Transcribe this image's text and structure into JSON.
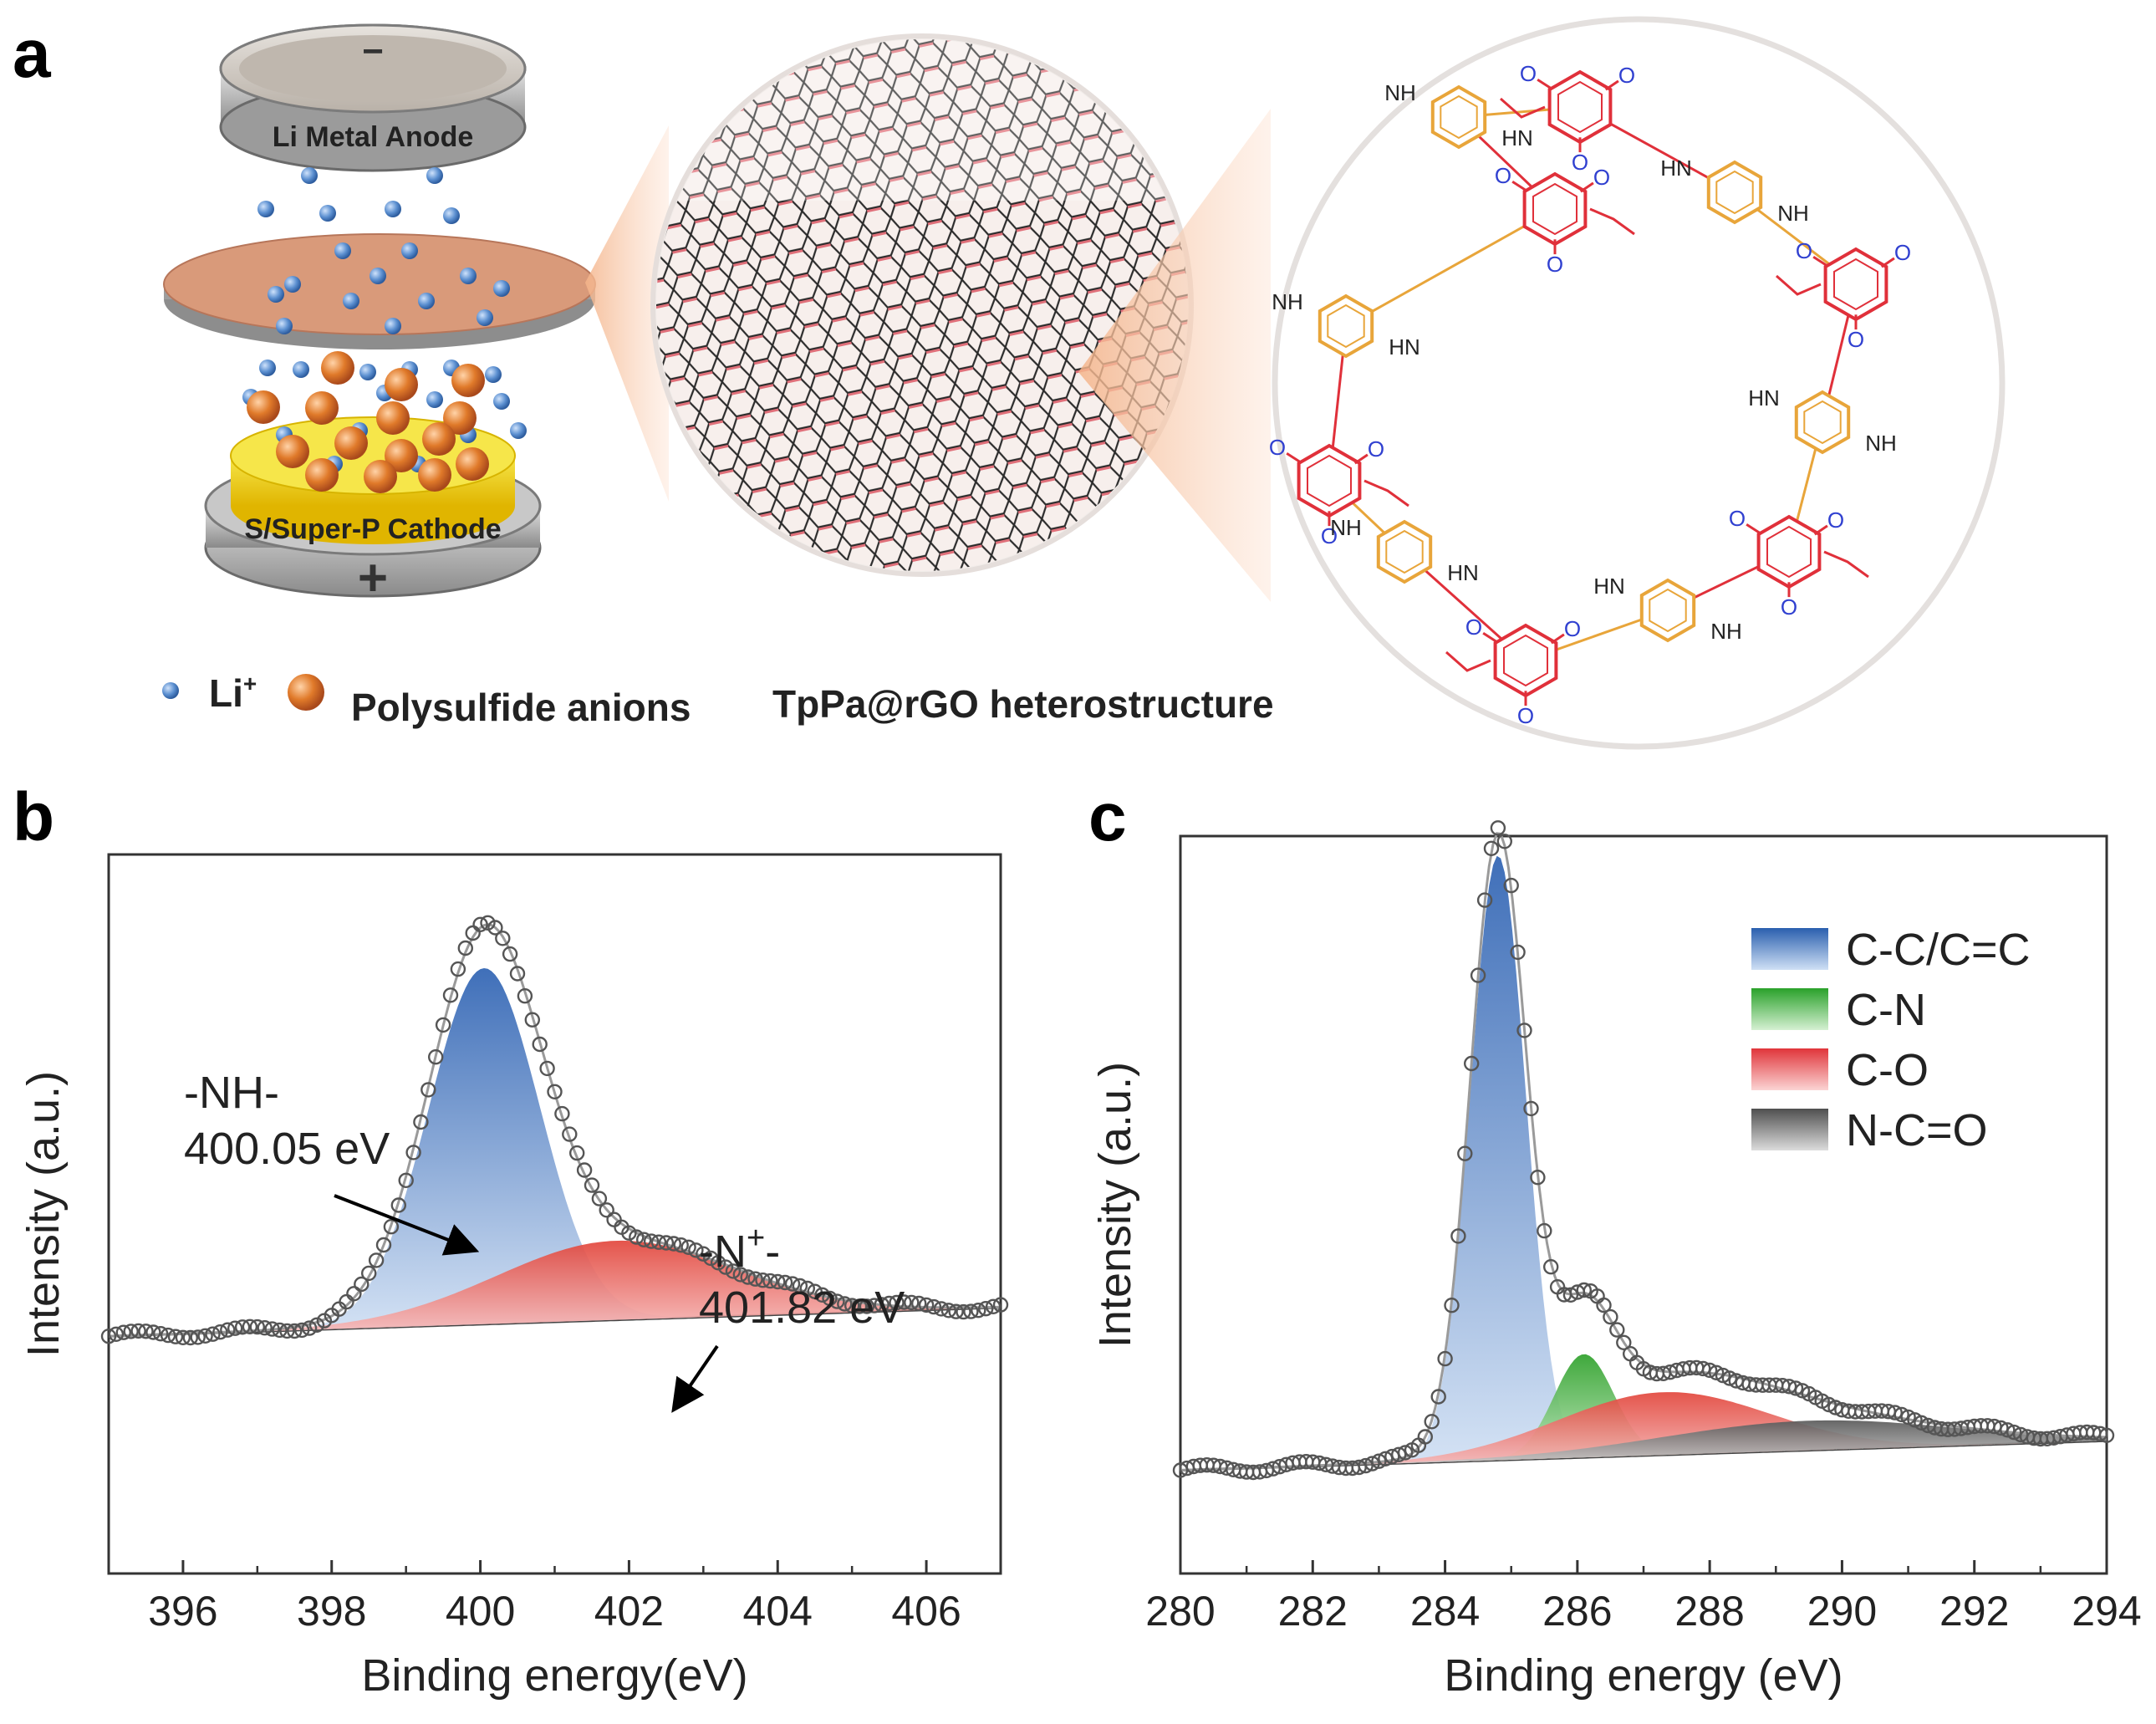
{
  "panels": {
    "a": "a",
    "b": "b",
    "c": "c"
  },
  "schematic": {
    "anode_label": "Li Metal Anode",
    "cathode_label": "S/Super-P Cathode",
    "minus_sign": "−",
    "plus_sign": "+",
    "legend": {
      "li": "Li",
      "li_sup": "+",
      "polysulfide": "Polysulfide anions",
      "heterostructure": "TpPa@rGO heterostructure"
    },
    "colors": {
      "li_ion": "#5b8fd0",
      "polysulfide": "#e07a2a",
      "separator": "#d99a7a",
      "cathode": "#f2dc1d",
      "keto": "#e0303a",
      "linker": "#e8a53a",
      "oxygen": "#3040d0"
    },
    "chem": {
      "O": "O",
      "NH": "NH",
      "HN": "HN",
      "H": "H",
      "N": "N"
    }
  },
  "chart_data": [
    {
      "panel": "b",
      "type": "line",
      "title": "",
      "xlabel": "Binding energy(eV)",
      "ylabel": "Intensity (a.u.)",
      "xlim": [
        395,
        407
      ],
      "ylim": [
        0,
        1
      ],
      "xticks": [
        "396",
        "398",
        "400",
        "402",
        "404",
        "406"
      ],
      "components": [
        {
          "name": "-NH-",
          "center": 400.05,
          "height": 0.495,
          "width": 0.75,
          "color": "#3f73bd"
        },
        {
          "name": "-N+-",
          "center": 401.82,
          "height": 0.11,
          "width": 1.6,
          "color": "#e23a35"
        }
      ],
      "background": {
        "from": [
          395,
          0.33
        ],
        "to": [
          407,
          0.37
        ]
      },
      "annotations": [
        {
          "line1": "-NH-",
          "line2": "400.05 eV"
        },
        {
          "line1_pre": "-N",
          "line1_sup": "+",
          "line1_post": "-",
          "line2": "401.82 eV"
        }
      ]
    },
    {
      "panel": "c",
      "type": "line",
      "title": "",
      "xlabel": "Binding energy (eV)",
      "ylabel": "Intensity (a.u.)",
      "xlim": [
        280,
        294
      ],
      "ylim": [
        0,
        1
      ],
      "xticks": [
        "280",
        "282",
        "284",
        "286",
        "288",
        "290",
        "292",
        "294"
      ],
      "components": [
        {
          "name": "C-C/C=C",
          "center": 284.8,
          "height": 0.82,
          "width": 0.42,
          "color": "#3a6fc0"
        },
        {
          "name": "C-N",
          "center": 286.1,
          "height": 0.14,
          "width": 0.45,
          "color": "#3fae3a"
        },
        {
          "name": "C-O",
          "center": 287.3,
          "height": 0.085,
          "width": 1.6,
          "color": "#e8383c"
        },
        {
          "name": "N-C=O",
          "center": 289.5,
          "height": 0.04,
          "width": 2.2,
          "color": "#6a6a6a"
        }
      ],
      "background": {
        "from": [
          280,
          0.14
        ],
        "to": [
          294,
          0.18
        ]
      },
      "legend": [
        "C-C/C=C",
        "C-N",
        "C-O",
        "N-C=O"
      ]
    }
  ]
}
